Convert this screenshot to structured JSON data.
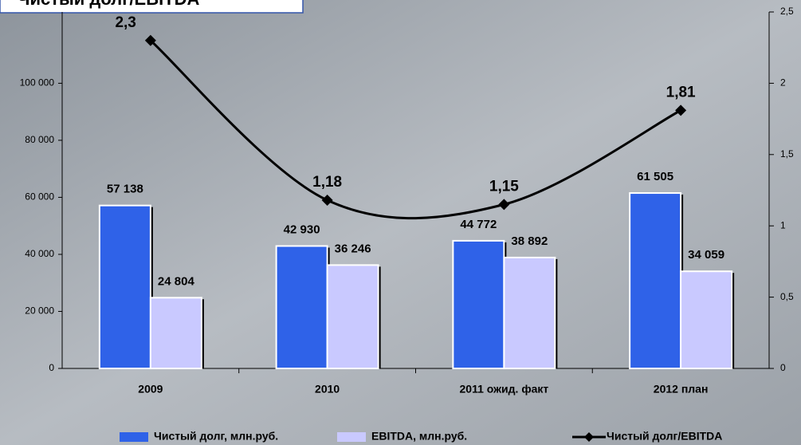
{
  "chart_data": {
    "type": "bar",
    "title": "Чистый долг/EBITDA",
    "categories": [
      "2009",
      "2010",
      "2011 ожид. факт",
      "2012 план"
    ],
    "series": [
      {
        "name": "Чистый долг, млн.руб.",
        "color": "#2f62e8",
        "values": [
          57138,
          42930,
          44772,
          61505
        ],
        "value_labels": [
          "57 138",
          "42 930",
          "44 772",
          "61 505"
        ]
      },
      {
        "name": "EBITDA, млн.руб.",
        "color": "#c9c9ff",
        "values": [
          24804,
          36246,
          38892,
          34059
        ],
        "value_labels": [
          "24 804",
          "36 246",
          "38 892",
          "34 059"
        ]
      },
      {
        "name": "Чистый долг/EBITDA",
        "type": "line",
        "axis": "y2",
        "color": "#000000",
        "values": [
          2.3,
          1.18,
          1.15,
          1.81
        ],
        "value_labels": [
          "2,3",
          "1,18",
          "1,15",
          "1,81"
        ]
      }
    ],
    "ylim": [
      0,
      125000
    ],
    "yticks": [
      0,
      {
        "value": 20000,
        "label": "20 000"
      },
      {
        "value": 40000,
        "label": "40 000"
      },
      {
        "value": 60000,
        "label": "60 000"
      },
      {
        "value": 80000,
        "label": "80 000"
      },
      {
        "value": 100000,
        "label": "100 000"
      }
    ],
    "y2lim": [
      0,
      2.5
    ],
    "y2ticks": [
      0,
      {
        "value": 0.5,
        "label": "0,5"
      },
      1,
      {
        "value": 1.5,
        "label": "1,5"
      },
      2,
      {
        "value": 2.5,
        "label": "2,5"
      }
    ]
  }
}
